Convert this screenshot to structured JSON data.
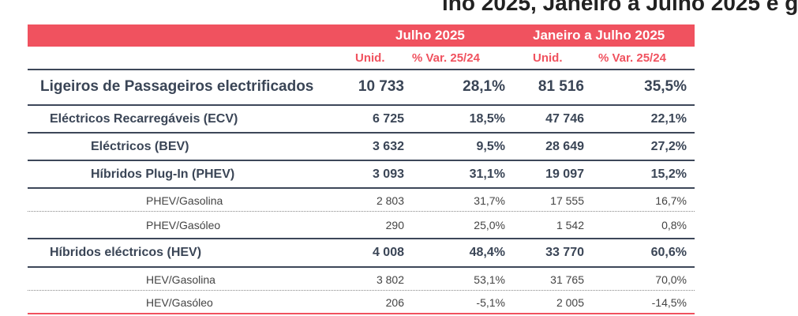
{
  "title_fragment": "lho 2025, Janeiro a Julho 2025 e g",
  "header": {
    "period1": "Julho 2025",
    "period2": "Janeiro a Julho 2025"
  },
  "subheader": {
    "unid1": "Unid.",
    "var1": "% Var. 25/24",
    "unid2": "Unid.",
    "var2": "% Var. 25/24"
  },
  "rows": [
    {
      "label": "Ligeiros de Passageiros electrificados",
      "unid_jul": "10 733",
      "var_jul": "28,1%",
      "unid_ytd": "81 516",
      "var_ytd": "35,5%"
    },
    {
      "label": "Eléctricos Recarregáveis (ECV)",
      "unid_jul": "6 725",
      "var_jul": "18,5%",
      "unid_ytd": "47 746",
      "var_ytd": "22,1%"
    },
    {
      "label": "Eléctricos (BEV)",
      "unid_jul": "3 632",
      "var_jul": "9,5%",
      "unid_ytd": "28 649",
      "var_ytd": "27,2%"
    },
    {
      "label": "Híbridos Plug-In (PHEV)",
      "unid_jul": "3 093",
      "var_jul": "31,1%",
      "unid_ytd": "19 097",
      "var_ytd": "15,2%"
    },
    {
      "label": "PHEV/Gasolina",
      "unid_jul": "2 803",
      "var_jul": "31,7%",
      "unid_ytd": "17 555",
      "var_ytd": "16,7%"
    },
    {
      "label": "PHEV/Gasóleo",
      "unid_jul": "290",
      "var_jul": "25,0%",
      "unid_ytd": "1 542",
      "var_ytd": "0,8%"
    },
    {
      "label": "Híbridos eléctricos (HEV)",
      "unid_jul": "4 008",
      "var_jul": "48,4%",
      "unid_ytd": "33 770",
      "var_ytd": "60,6%"
    },
    {
      "label": "HEV/Gasolina",
      "unid_jul": "3 802",
      "var_jul": "53,1%",
      "unid_ytd": "31 765",
      "var_ytd": "70,0%"
    },
    {
      "label": "HEV/Gasóleo",
      "unid_jul": "206",
      "var_jul": "-5,1%",
      "unid_ytd": "2 005",
      "var_ytd": "-14,5%"
    }
  ],
  "colors": {
    "accent": "#f0525f",
    "text": "#3a4556",
    "rule": "#3d4759"
  }
}
